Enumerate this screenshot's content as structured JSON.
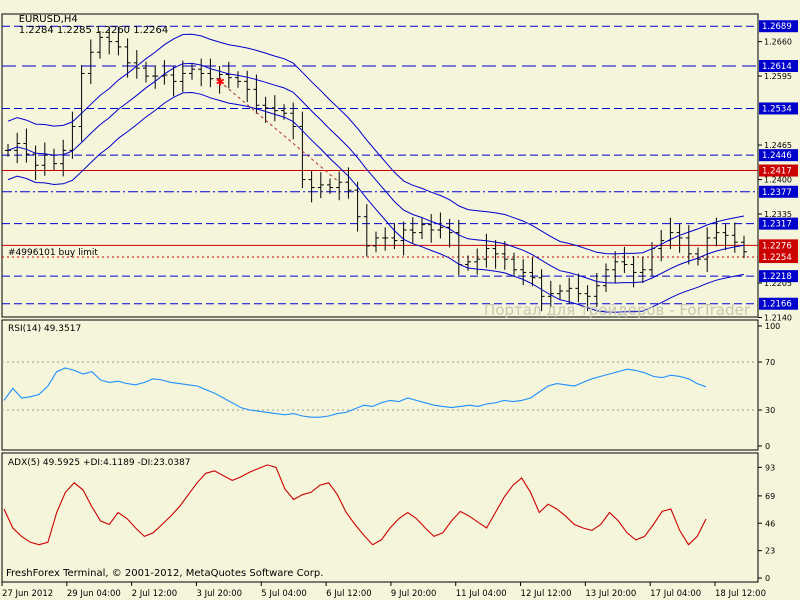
{
  "header": {
    "symbol": "EURUSD,H4",
    "ohlc": "1.2284 1.2285 1.2260 1.2264"
  },
  "order_label": "#4996101 buy limit",
  "watermark": "Портал для трейдеров - ForTrader",
  "footer": "FreshForex Terminal, © 2001-2012, MetaQuotes Software Corp.",
  "colors": {
    "background": "#f5f5dc",
    "candle": "#000000",
    "envelope": "#0000cc",
    "rsi": "#1e90ff",
    "adx": "#cc0000",
    "level_box": "#0000cc",
    "red_level_box": "#cc0000",
    "buy_limit_line": "#cc0000",
    "entry_marker": "#ff0000"
  },
  "chart_data": [
    {
      "type": "candlestick",
      "panel": "price",
      "ylim": [
        1.2141,
        1.2712
      ],
      "y_ticks": [
        "1.2660",
        "1.2595",
        "1.2465",
        "1.2400",
        "1.2335",
        "1.2205",
        "1.2140"
      ],
      "time_labels": [
        "27 Jun 2012",
        "29 Jun 04:00",
        "2 Jul 12:00",
        "3 Jul 20:00",
        "5 Jul 04:00",
        "6 Jul 12:00",
        "9 Jul 20:00",
        "11 Jul 04:00",
        "12 Jul 12:00",
        "13 Jul 20:00",
        "17 Jul 04:00",
        "18 Jul 12:00"
      ],
      "closes": [
        1.2455,
        1.2468,
        1.2448,
        1.2427,
        1.2446,
        1.243,
        1.2455,
        1.25,
        1.26,
        1.264,
        1.2668,
        1.266,
        1.265,
        1.262,
        1.261,
        1.2595,
        1.2595,
        1.2597,
        1.2585,
        1.26,
        1.2608,
        1.26,
        1.259,
        1.2598,
        1.2592,
        1.2585,
        1.257,
        1.254,
        1.2535,
        1.253,
        1.2525,
        1.25,
        1.24,
        1.2385,
        1.239,
        1.2385,
        1.2395,
        1.238,
        1.233,
        1.2275,
        1.229,
        1.229,
        1.2285,
        1.2305,
        1.23,
        1.2315,
        1.2305,
        1.231,
        1.23,
        1.224,
        1.2245,
        1.225,
        1.227,
        1.226,
        1.225,
        1.223,
        1.2225,
        1.2215,
        1.218,
        1.2185,
        1.219,
        1.2195,
        1.2185,
        1.218,
        1.22,
        1.223,
        1.2245,
        1.224,
        1.2225,
        1.223,
        1.227,
        1.2285,
        1.23,
        1.229,
        1.226,
        1.225,
        1.229,
        1.23,
        1.2295,
        1.2282,
        1.2264
      ],
      "levels": [
        {
          "value": "1.2689",
          "style": "dash",
          "color": "#0000cc"
        },
        {
          "value": "1.2614",
          "style": "longdash",
          "color": "#0000cc"
        },
        {
          "value": "1.2534",
          "style": "dash",
          "color": "#0000cc"
        },
        {
          "value": "1.2446",
          "style": "dash",
          "color": "#0000cc"
        },
        {
          "value": "1.2417",
          "style": "solid",
          "color": "#cc0000"
        },
        {
          "value": "1.2377",
          "style": "dashdot",
          "color": "#0000cc"
        },
        {
          "value": "1.2317",
          "style": "dash",
          "color": "#0000cc"
        },
        {
          "value": "1.2276",
          "style": "solid",
          "color": "#cc0000"
        },
        {
          "value": "1.2254",
          "style": "dot",
          "color": "#cc0000"
        },
        {
          "value": "1.2218",
          "style": "dash",
          "color": "#0000cc"
        },
        {
          "value": "1.2166",
          "style": "dash",
          "color": "#0000cc"
        }
      ]
    },
    {
      "type": "line",
      "panel": "rsi",
      "label": "RSI(14) 49.3517",
      "ylim": [
        0,
        100
      ],
      "y_ticks": [
        "100",
        "70",
        "30",
        "0"
      ],
      "values": [
        38,
        48,
        40,
        41,
        43,
        50,
        62,
        65,
        63,
        60,
        62,
        55,
        53,
        54,
        52,
        51,
        53,
        56,
        55,
        53,
        52,
        51,
        50,
        47,
        44,
        40,
        36,
        32,
        30,
        29,
        28,
        27,
        26,
        27,
        25,
        24,
        24,
        25,
        27,
        28,
        31,
        34,
        33,
        36,
        38,
        37,
        40,
        38,
        36,
        34,
        33,
        32,
        33,
        34,
        33,
        35,
        36,
        38,
        37,
        38,
        40,
        45,
        50,
        52,
        51,
        50,
        53,
        56,
        58,
        60,
        62,
        64,
        63,
        61,
        58,
        57,
        59,
        58,
        56,
        52,
        49.3517
      ]
    },
    {
      "type": "line",
      "panel": "adx",
      "label": "ADX(5) 49.5925 +DI:4.1189 -DI:23.0387",
      "ylim": [
        0,
        100
      ],
      "y_ticks": [
        "93",
        "69",
        "46",
        "23",
        "0"
      ],
      "values": [
        58,
        42,
        35,
        30,
        28,
        30,
        55,
        72,
        80,
        74,
        60,
        48,
        45,
        55,
        50,
        42,
        35,
        38,
        45,
        52,
        60,
        70,
        80,
        88,
        90,
        86,
        82,
        85,
        89,
        92,
        95,
        93,
        75,
        66,
        70,
        72,
        78,
        80,
        70,
        55,
        45,
        36,
        28,
        32,
        42,
        50,
        55,
        50,
        42,
        35,
        38,
        48,
        56,
        52,
        47,
        42,
        55,
        68,
        78,
        84,
        72,
        55,
        62,
        58,
        52,
        45,
        42,
        40,
        45,
        55,
        48,
        38,
        32,
        35,
        45,
        56,
        58,
        40,
        28,
        35,
        49.5925
      ]
    }
  ]
}
